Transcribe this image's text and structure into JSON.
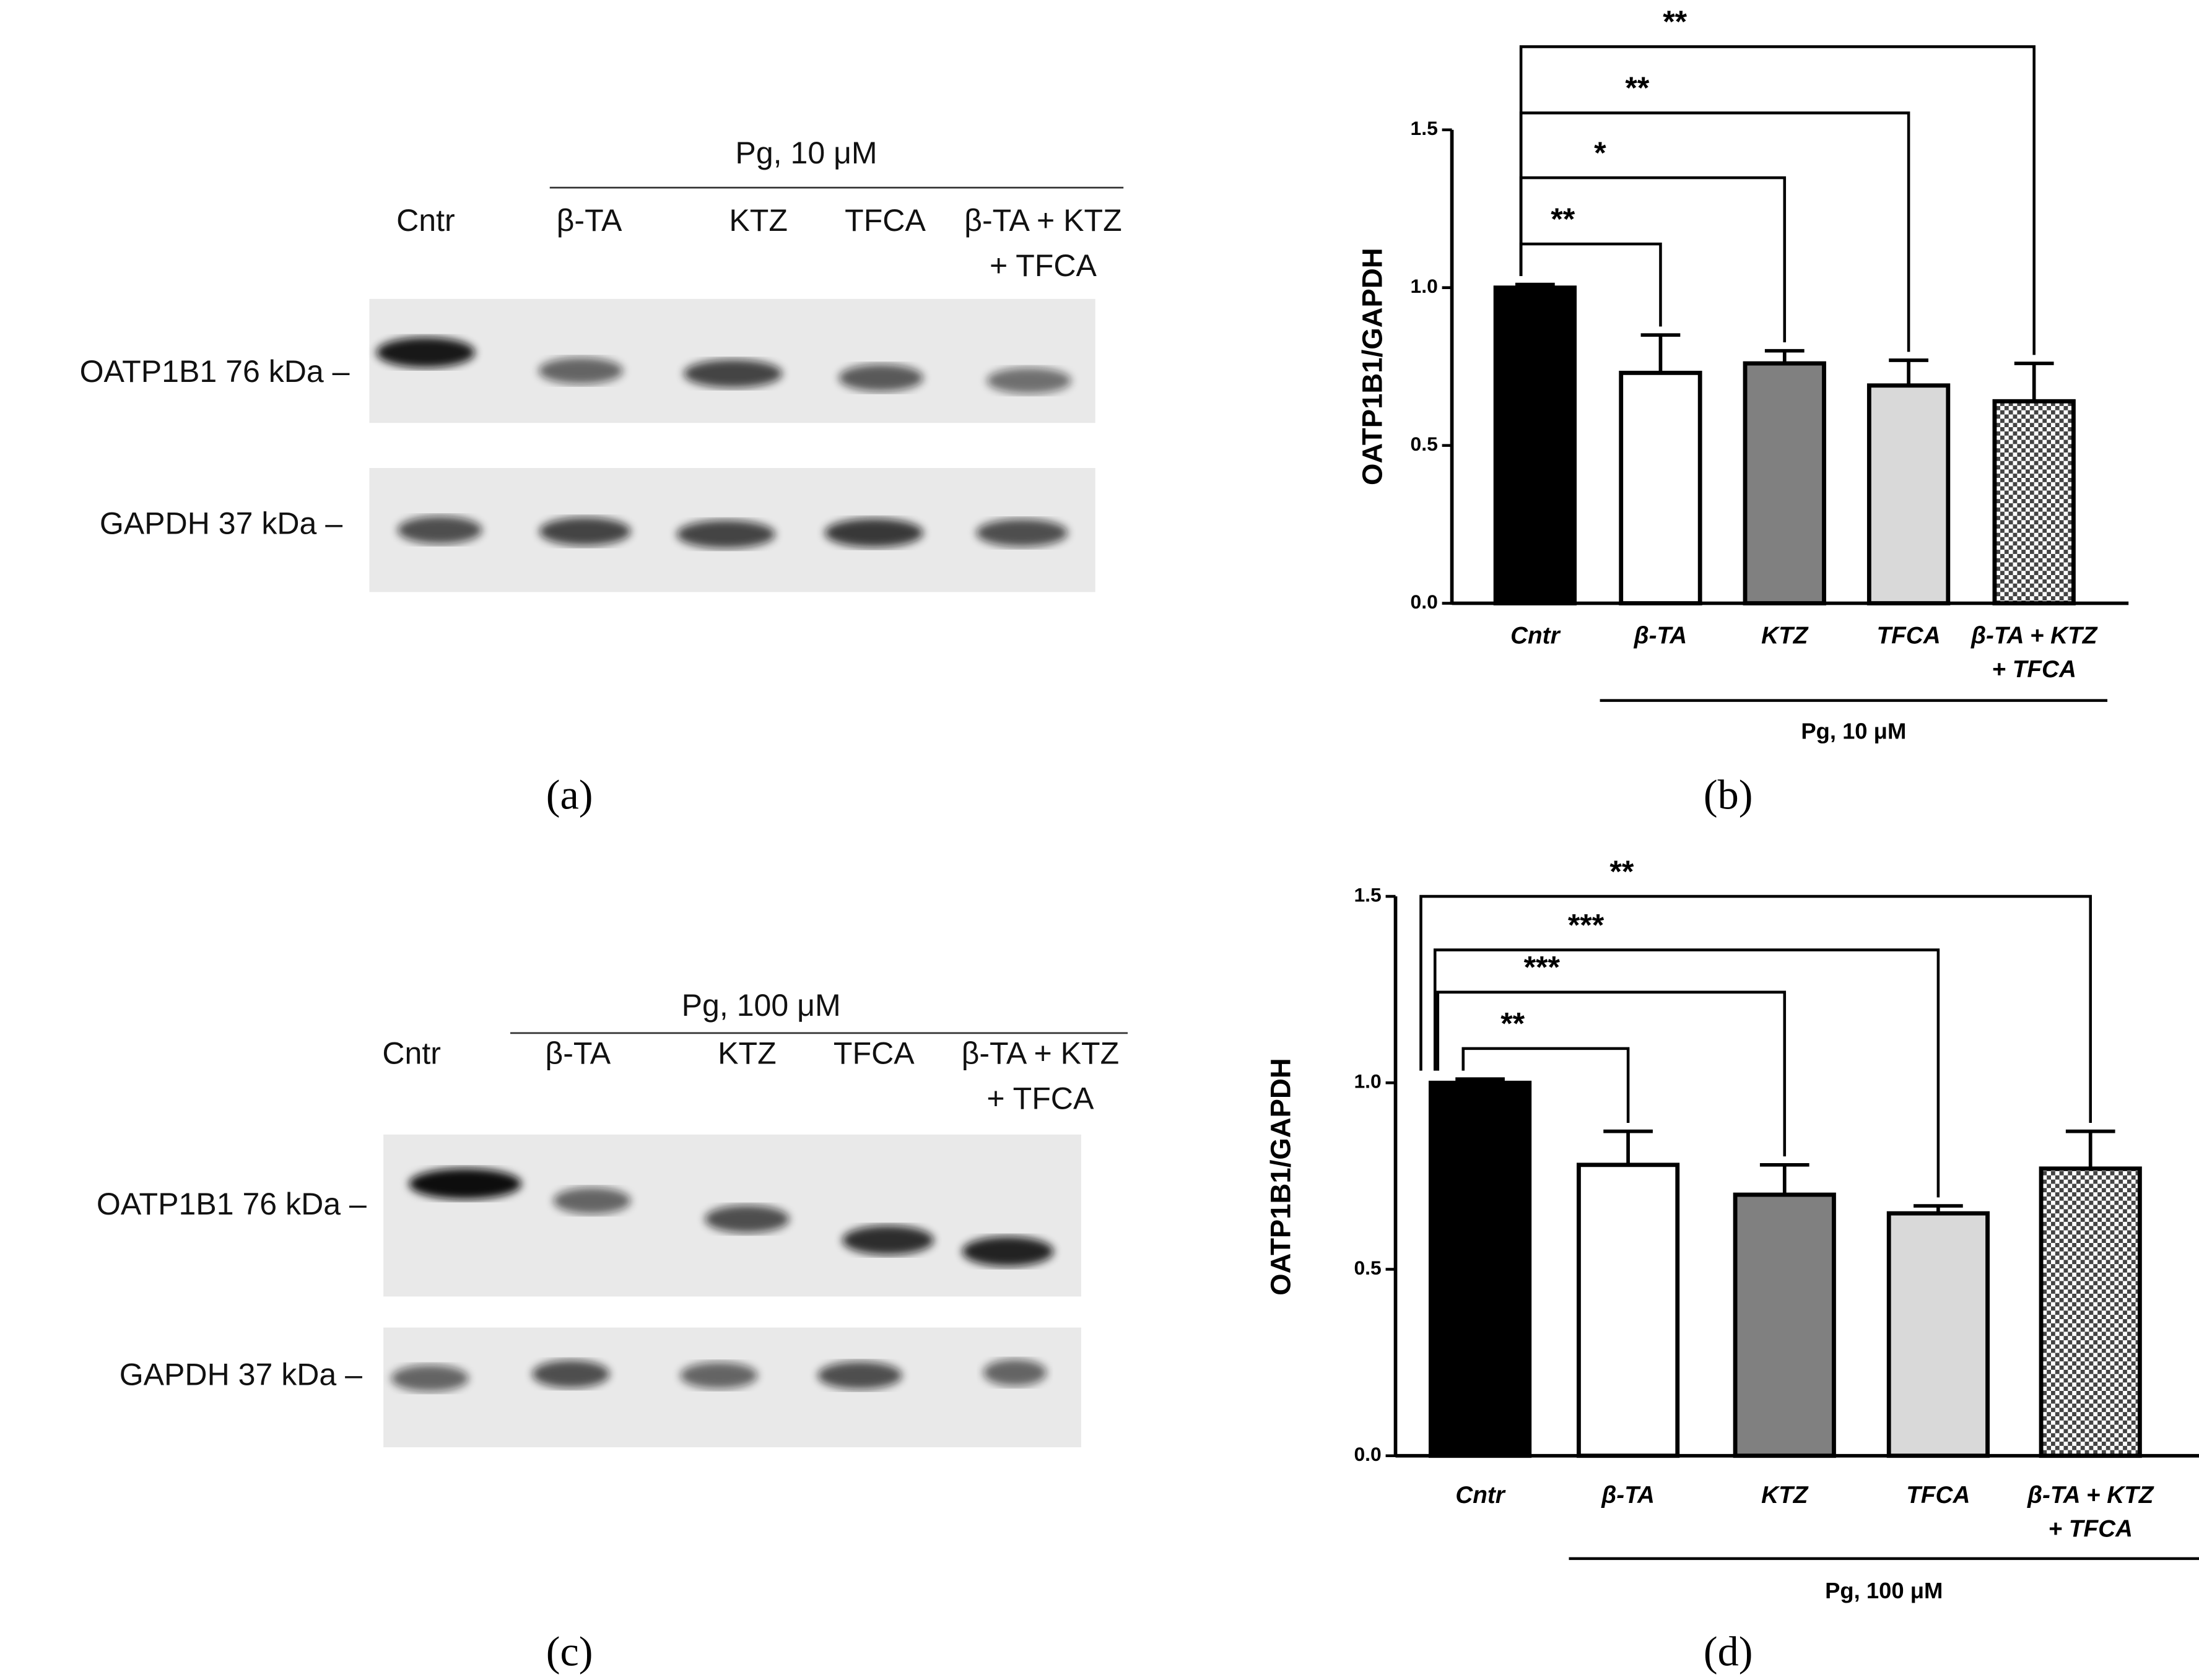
{
  "blots": [
    {
      "condition": "Pg, 10 μM",
      "lanes": [
        "Cntr",
        "β-TA",
        "KTZ",
        "TFCA",
        [
          "β-TA + KTZ",
          "+ TFCA"
        ]
      ],
      "rows": [
        "OATP1B1 76 kDa –",
        "GAPDH  37 kDa –"
      ],
      "panel": "(a)"
    },
    {
      "condition": "Pg, 100 μM",
      "lanes": [
        "Cntr",
        "β-TA",
        "KTZ",
        "TFCA",
        [
          "β-TA + KTZ",
          "+ TFCA"
        ]
      ],
      "rows": [
        "OATP1B1 76 kDa –",
        "GAPDH  37 kDa –"
      ],
      "panel": "(c)"
    }
  ],
  "chart_data": [
    {
      "type": "bar",
      "panel": "(b)",
      "ylabel": "OATP1B1/GAPDH",
      "group_label": "Pg, 10 μM",
      "categories": [
        "Cntr",
        "β-TA",
        "KTZ",
        "TFCA",
        [
          "β-TA + KTZ",
          "+ TFCA"
        ]
      ],
      "values": [
        1.0,
        0.73,
        0.76,
        0.69,
        0.64
      ],
      "errors": [
        0.01,
        0.12,
        0.04,
        0.08,
        0.12
      ],
      "colors": [
        "#000000",
        "#ffffff",
        "#808080",
        "#d9d9d9",
        "#ffffff"
      ],
      "patterns": [
        null,
        null,
        null,
        null,
        "checker"
      ],
      "ylim": [
        0,
        1.5
      ],
      "yticks": [
        {
          "value": 0,
          "label": "0.0"
        },
        0.5,
        {
          "value": 1,
          "label": "1.0"
        },
        1.5
      ],
      "annotations": [
        {
          "from": 0,
          "to": 1,
          "label": "**"
        },
        {
          "from": 0,
          "to": 2,
          "label": "*"
        },
        {
          "from": 0,
          "to": 3,
          "label": "**"
        },
        {
          "from": 0,
          "to": 4,
          "label": "**"
        }
      ]
    },
    {
      "type": "bar",
      "panel": "(d)",
      "ylabel": "OATP1B1/GAPDH",
      "group_label": "Pg, 100 μM",
      "categories": [
        "Cntr",
        "β-TA",
        "KTZ",
        "TFCA",
        [
          "β-TA + KTZ",
          "+ TFCA"
        ]
      ],
      "values": [
        1.0,
        0.78,
        0.7,
        0.65,
        0.77
      ],
      "errors": [
        0.01,
        0.09,
        0.08,
        0.02,
        0.1
      ],
      "colors": [
        "#000000",
        "#ffffff",
        "#808080",
        "#d9d9d9",
        "#ffffff"
      ],
      "patterns": [
        null,
        null,
        null,
        null,
        "checker"
      ],
      "ylim": [
        0,
        1.5
      ],
      "yticks": [
        {
          "value": 0,
          "label": "0.0"
        },
        0.5,
        {
          "value": 1,
          "label": "1.0"
        },
        1.5
      ],
      "annotations": [
        {
          "from": 0,
          "to": 1,
          "label": "**"
        },
        {
          "from": 0,
          "to": 2,
          "label": "***"
        },
        {
          "from": 0,
          "to": 3,
          "label": "***"
        },
        {
          "from": 0,
          "to": 4,
          "label": "**"
        }
      ]
    }
  ]
}
